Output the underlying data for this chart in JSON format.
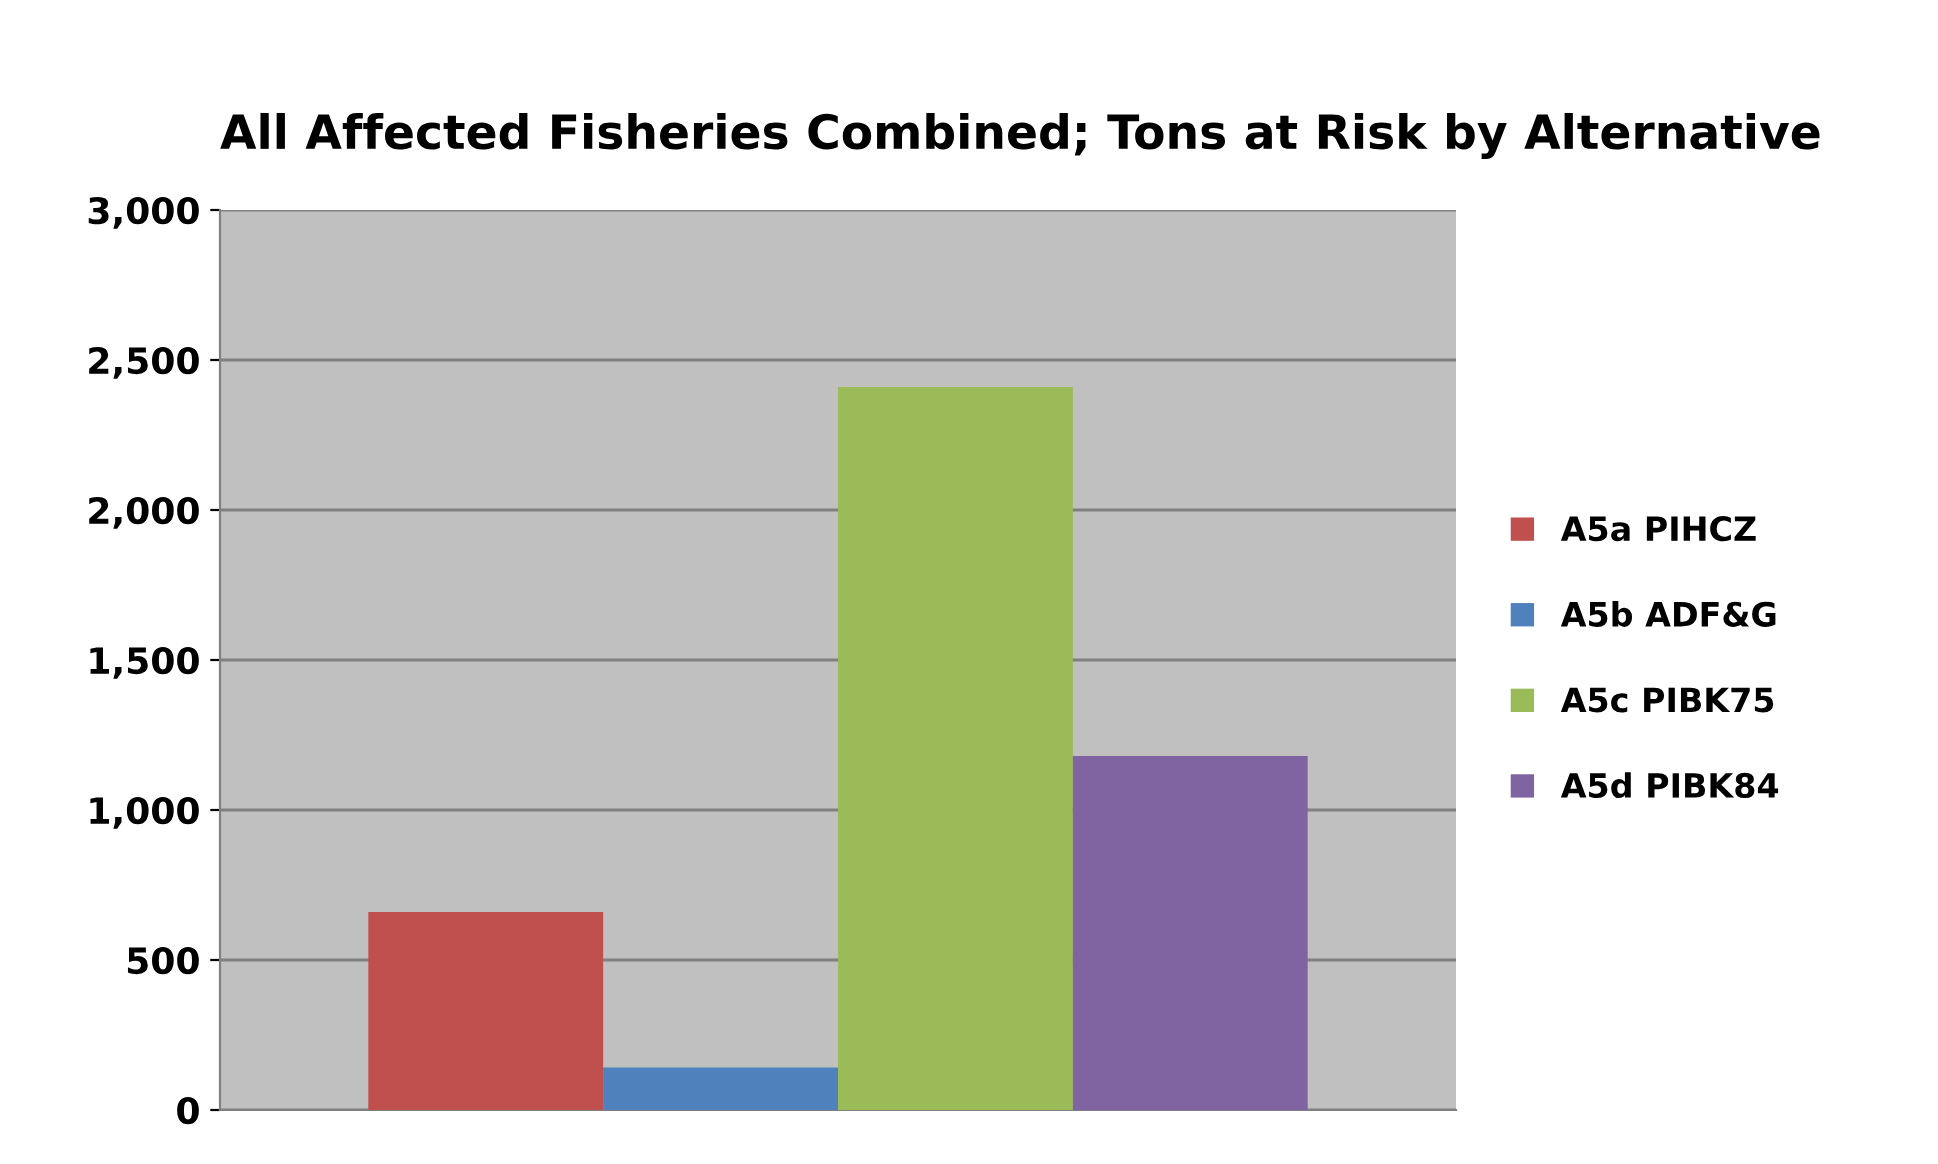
{
  "chart_data": {
    "type": "bar",
    "title": "All Affected Fisheries Combined; Tons at Risk by Alternative",
    "categories": [
      null
    ],
    "series": [
      {
        "name": "A5a PIHCZ",
        "color": "#c0504d",
        "values": [
          660
        ]
      },
      {
        "name": "A5b ADF&G",
        "color": "#4f81bd",
        "values": [
          142
        ]
      },
      {
        "name": "A5c PIBK75",
        "color": "#9bbb59",
        "values": [
          2410
        ]
      },
      {
        "name": "A5d PIBK84",
        "color": "#8064a2",
        "values": [
          1180
        ]
      }
    ],
    "ylim": [
      0,
      3000
    ],
    "yticks": [
      {
        "value": 0,
        "label": "0"
      },
      {
        "value": 500,
        "label": "500"
      },
      {
        "value": 1000,
        "label": "1,000"
      },
      {
        "value": 1500,
        "label": "1,500"
      },
      {
        "value": 2000,
        "label": "2,000"
      },
      {
        "value": 2500,
        "label": "2,500"
      },
      {
        "value": 3000,
        "label": "3,000"
      }
    ],
    "grid": "y",
    "legend": "right"
  }
}
